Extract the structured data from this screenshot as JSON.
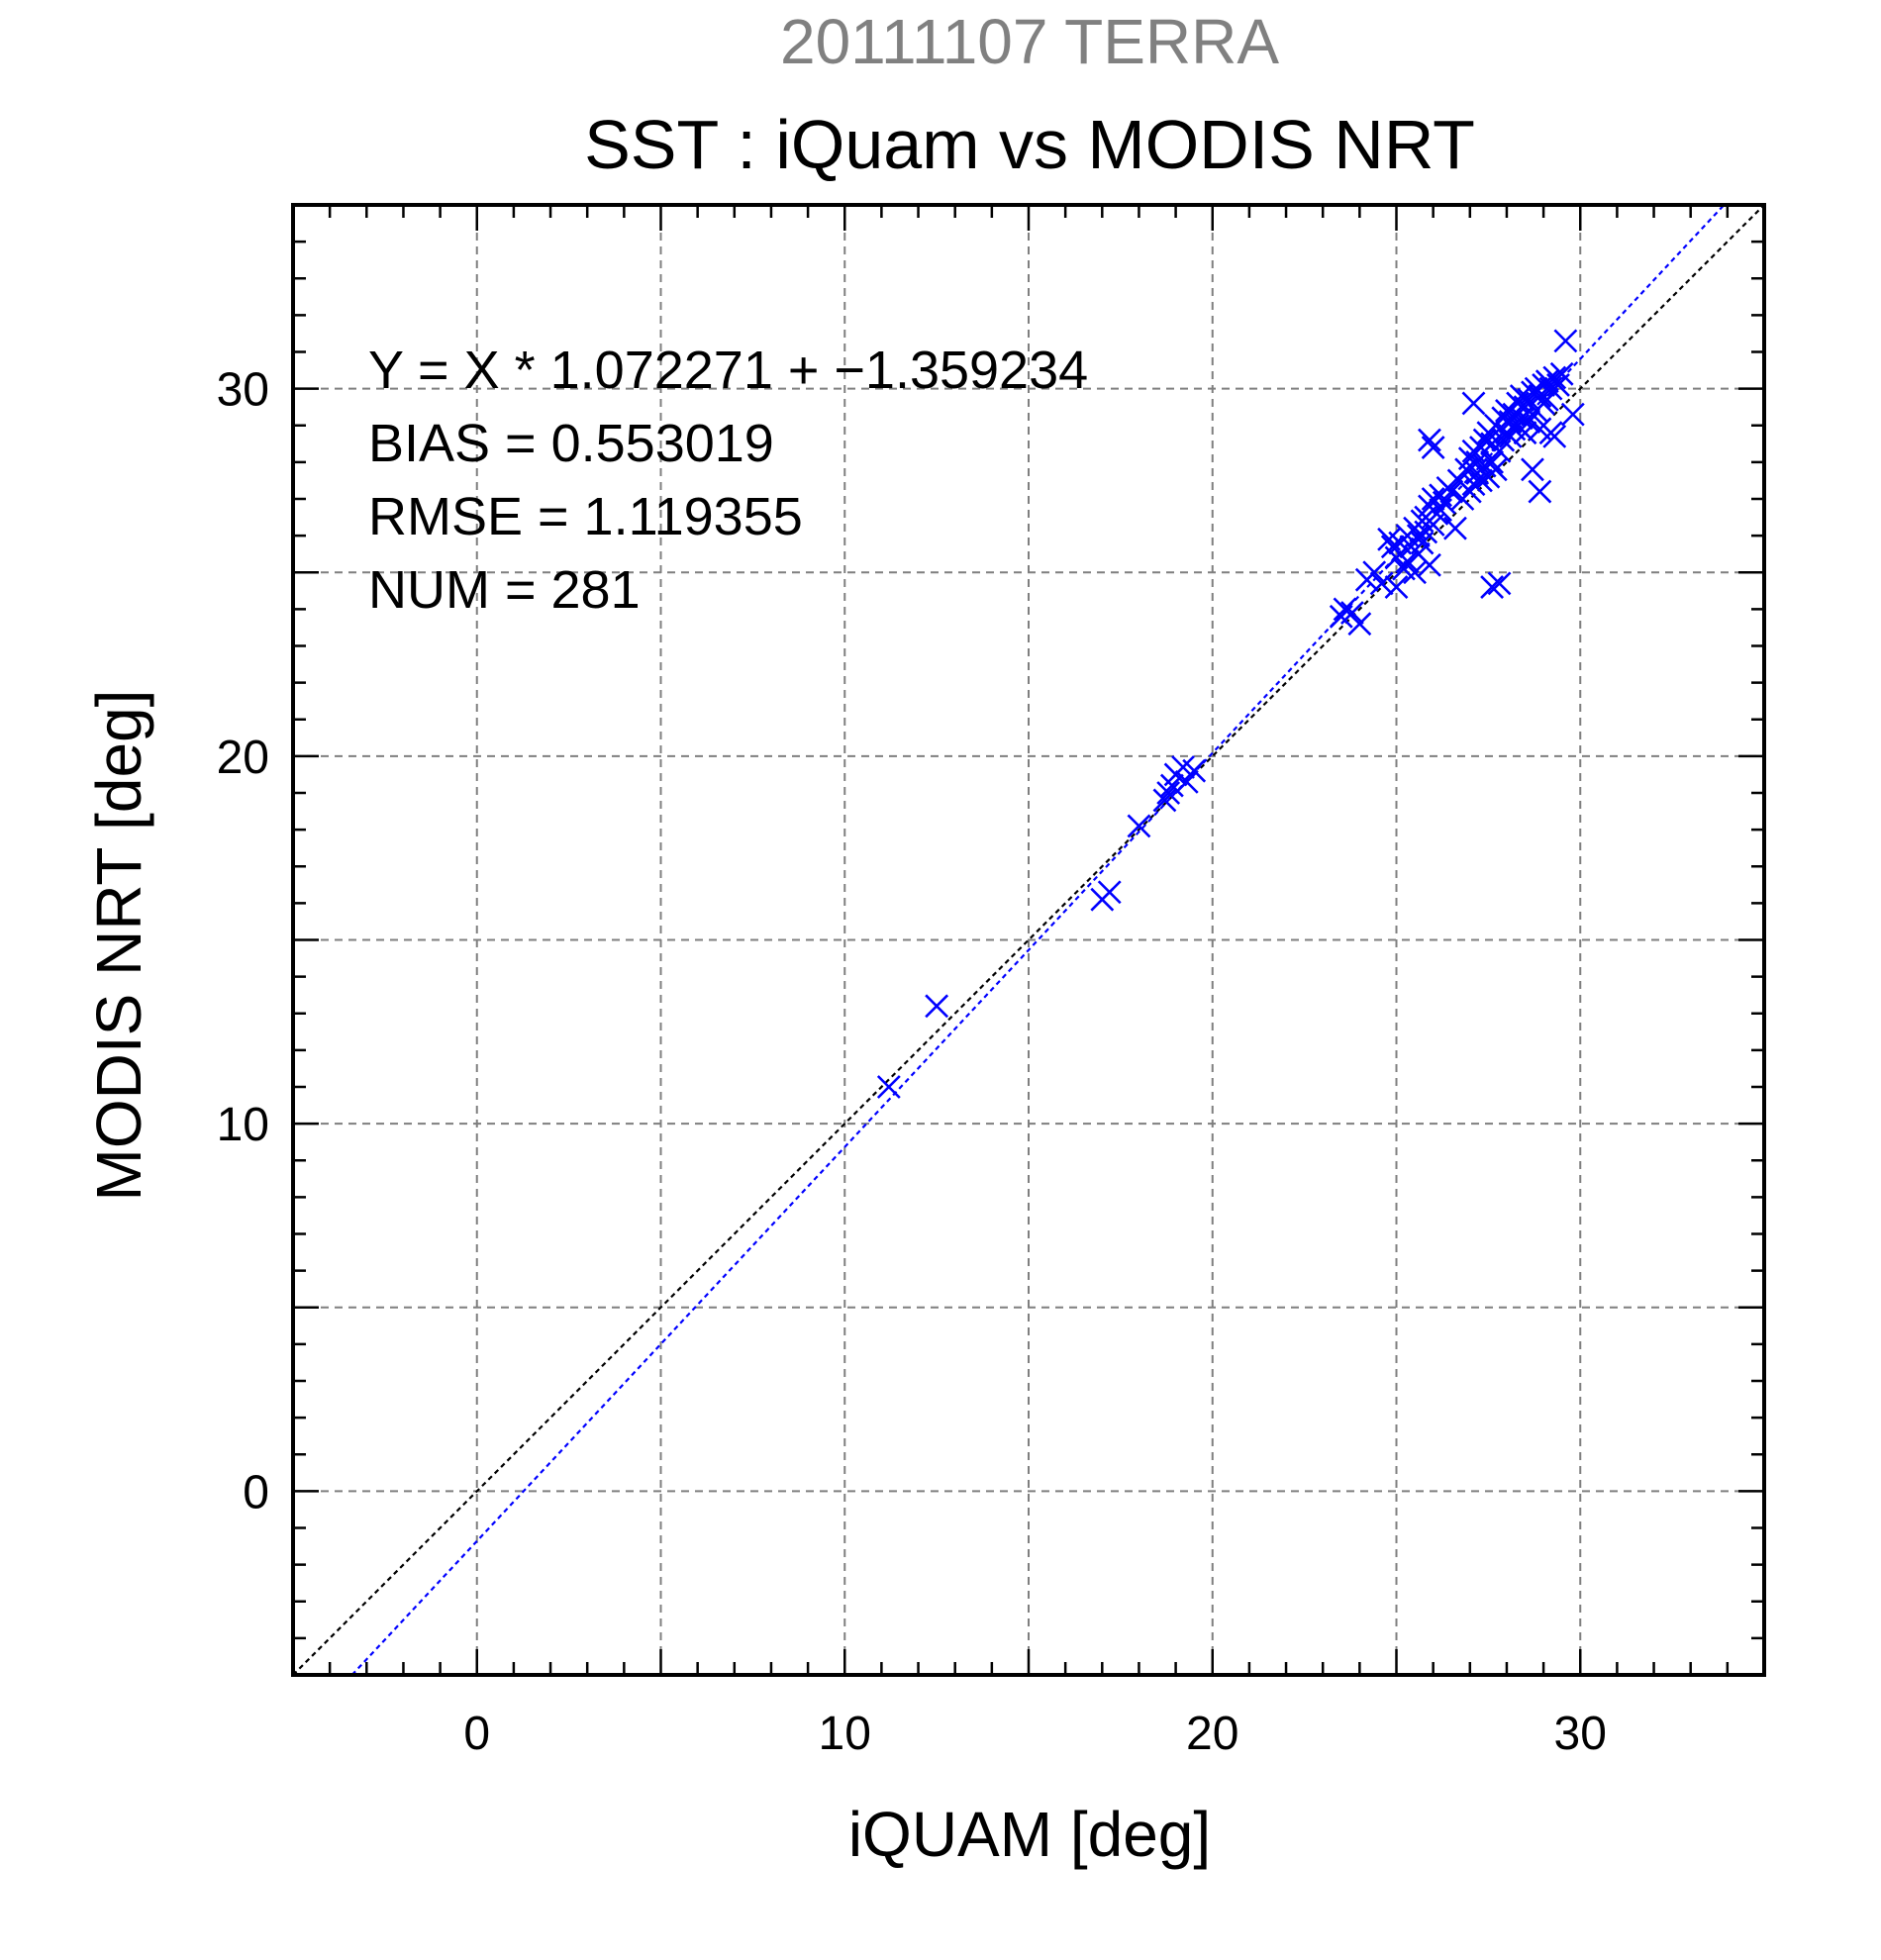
{
  "chart_data": {
    "type": "scatter",
    "supertitle": "20111107 TERRA",
    "title": "SST : iQuam vs MODIS NRT",
    "xlabel": "iQUAM [deg]",
    "ylabel": "MODIS NRT [deg]",
    "xlim": [
      -5,
      35
    ],
    "ylim": [
      -5,
      35
    ],
    "xticks": [
      0,
      10,
      20,
      30
    ],
    "yticks": [
      0,
      10,
      20,
      30
    ],
    "minor_tick_step": 1,
    "grid": true,
    "grid_step": 5,
    "stats": {
      "equation": "Y = X * 1.072271 + −1.359234",
      "bias": "BIAS = 0.553019",
      "rmse": "RMSE = 1.119355",
      "num": "NUM = 281"
    },
    "one_to_one_line": {
      "slope": 1,
      "intercept": 0,
      "color": "#000000"
    },
    "fit_line": {
      "slope": 1.072271,
      "intercept": -1.359234,
      "color": "#0000ff"
    },
    "marker_color": "#0000ff",
    "series": [
      {
        "x": [
          11.2,
          12.5,
          17.0,
          17.2,
          18.0,
          18.7,
          18.8,
          18.9,
          19.0,
          19.2,
          19.3,
          19.5,
          23.5,
          23.6,
          23.8,
          24.0,
          24.2,
          24.4,
          24.6,
          24.8,
          24.9,
          25.0,
          25.0,
          25.1,
          25.2,
          25.3,
          25.3,
          25.4,
          25.5,
          25.5,
          25.6,
          25.6,
          25.7,
          25.7,
          25.8,
          25.8,
          25.9,
          25.9,
          26.0,
          26.0,
          26.1,
          26.2,
          26.2,
          26.3,
          26.4,
          26.5,
          26.6,
          26.7,
          26.8,
          26.9,
          27.0,
          27.0,
          27.1,
          27.1,
          27.2,
          27.2,
          27.3,
          27.3,
          27.4,
          27.4,
          27.5,
          27.5,
          27.6,
          27.6,
          27.7,
          27.7,
          27.8,
          27.8,
          27.9,
          27.9,
          28.0,
          28.0,
          28.1,
          28.1,
          28.2,
          28.2,
          28.3,
          28.3,
          28.4,
          28.4,
          28.5,
          28.5,
          28.6,
          28.6,
          28.7,
          28.7,
          28.8,
          28.8,
          28.9,
          28.9,
          29.0,
          29.0,
          29.1,
          29.1,
          29.2,
          29.2,
          29.3,
          29.3,
          29.4,
          29.5,
          29.6,
          29.8,
          27.1,
          27.6,
          27.8,
          28.7,
          28.9,
          26.0,
          25.9
        ],
        "y": [
          11.0,
          13.2,
          16.1,
          16.3,
          18.1,
          18.8,
          19.0,
          19.2,
          19.5,
          19.7,
          19.3,
          19.6,
          23.8,
          24.0,
          23.9,
          23.6,
          24.8,
          25.0,
          24.7,
          25.9,
          25.7,
          24.6,
          25.4,
          25.8,
          25.1,
          26.0,
          25.3,
          25.7,
          26.2,
          25.0,
          26.0,
          25.5,
          26.4,
          25.8,
          26.5,
          26.1,
          26.8,
          25.2,
          26.3,
          27.0,
          26.6,
          27.1,
          26.7,
          26.9,
          27.3,
          27.2,
          26.2,
          27.5,
          27.0,
          27.8,
          27.2,
          28.1,
          27.4,
          28.3,
          27.7,
          28.0,
          27.5,
          28.4,
          27.9,
          28.6,
          27.6,
          28.8,
          28.0,
          28.5,
          27.8,
          29.0,
          28.3,
          28.9,
          28.6,
          29.2,
          28.8,
          29.4,
          28.7,
          29.1,
          29.3,
          28.9,
          29.6,
          29.0,
          29.2,
          29.8,
          29.5,
          28.8,
          29.7,
          29.1,
          29.9,
          29.3,
          30.0,
          29.4,
          28.9,
          29.8,
          30.1,
          29.6,
          30.2,
          29.7,
          30.0,
          28.8,
          30.3,
          28.7,
          30.1,
          30.4,
          31.3,
          29.3,
          29.6,
          24.6,
          24.7,
          27.8,
          27.2,
          28.4,
          28.6
        ]
      }
    ]
  }
}
